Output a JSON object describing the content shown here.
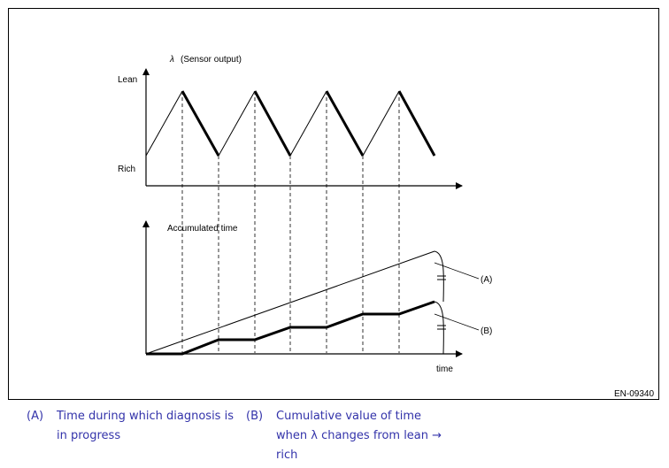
{
  "diagram": {
    "upper_y_label": "λ",
    "upper_y_label_note": "(Sensor output)",
    "lean_label": "Lean",
    "rich_label": "Rich",
    "lower_y_label": "Accumulated time",
    "x_label": "time",
    "callout_a": "(A)",
    "callout_b": "(B)",
    "figure_id": "EN-09340"
  },
  "legend": [
    {
      "code": "(A)",
      "text": "Time during which diagnosis is in progress"
    },
    {
      "code": "(B)",
      "text": "Cumulative value of time when λ changes from lean → rich"
    }
  ],
  "colors": {
    "legend_text": "#3333aa",
    "lines": "#000000"
  }
}
